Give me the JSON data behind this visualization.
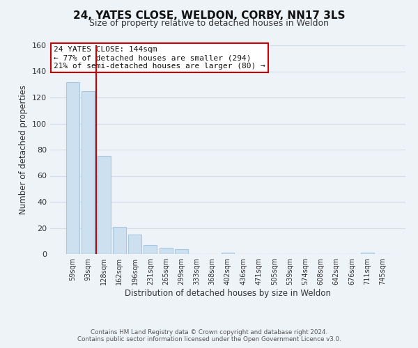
{
  "title": "24, YATES CLOSE, WELDON, CORBY, NN17 3LS",
  "subtitle": "Size of property relative to detached houses in Weldon",
  "xlabel": "Distribution of detached houses by size in Weldon",
  "ylabel": "Number of detached properties",
  "bar_labels": [
    "59sqm",
    "93sqm",
    "128sqm",
    "162sqm",
    "196sqm",
    "231sqm",
    "265sqm",
    "299sqm",
    "333sqm",
    "368sqm",
    "402sqm",
    "436sqm",
    "471sqm",
    "505sqm",
    "539sqm",
    "574sqm",
    "608sqm",
    "642sqm",
    "676sqm",
    "711sqm",
    "745sqm"
  ],
  "bar_values": [
    132,
    125,
    75,
    21,
    15,
    7,
    5,
    4,
    0,
    0,
    1,
    0,
    0,
    0,
    0,
    0,
    0,
    0,
    0,
    1,
    0
  ],
  "bar_color": "#cce0f0",
  "bar_edge_color": "#a8c8e0",
  "property_line_x": 1.5,
  "property_line_color": "#cc0000",
  "ylim": [
    0,
    160
  ],
  "yticks": [
    0,
    20,
    40,
    60,
    80,
    100,
    120,
    140,
    160
  ],
  "annotation_line1": "24 YATES CLOSE: 144sqm",
  "annotation_line2": "← 77% of detached houses are smaller (294)",
  "annotation_line3": "21% of semi-detached houses are larger (80) →",
  "annotation_box_color": "#ffffff",
  "annotation_box_edge": "#cc0000",
  "footer_line1": "Contains HM Land Registry data © Crown copyright and database right 2024.",
  "footer_line2": "Contains public sector information licensed under the Open Government Licence v3.0.",
  "grid_color": "#d0dde8",
  "background_color": "#eef3f8",
  "title_fontsize": 11,
  "subtitle_fontsize": 9
}
